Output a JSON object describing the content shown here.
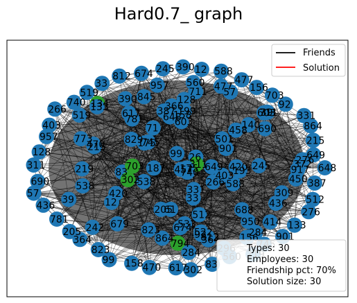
{
  "title": "Hard0.7_ graph",
  "legend": {
    "items": [
      {
        "label": "Friends",
        "color": "#000000"
      },
      {
        "label": "Solution",
        "color": "#ff0000"
      }
    ]
  },
  "info_box": {
    "lines": [
      "Types: 30",
      "Employees: 30",
      "Friendship pct: 70%",
      "Solution size: 30"
    ]
  },
  "colors": {
    "node": "#1f77b4",
    "solution_node": "#2ca02c",
    "edge": "#000000"
  },
  "node_labels": [
    "648",
    "387",
    "512",
    "276",
    "133",
    "901",
    "745",
    "219",
    "560",
    "83",
    "302",
    "617",
    "470",
    "158",
    "99",
    "823",
    "364",
    "205",
    "781",
    "436",
    "57",
    "690",
    "311",
    "128",
    "957",
    "403",
    "266",
    "740",
    "519",
    "33",
    "812",
    "674",
    "245",
    "390",
    "12",
    "588",
    "477",
    "156",
    "703",
    "92",
    "331",
    "864",
    "215",
    "649",
    "420",
    "175",
    "538",
    "284",
    "711",
    "39",
    "603",
    "193",
    "457",
    "829",
    "366",
    "71",
    "501",
    "242",
    "688",
    "917",
    "134",
    "450",
    "296",
    "773",
    "61",
    "522",
    "309",
    "845",
    "187",
    "414",
    "950",
    "26",
    "603",
    "372",
    "199",
    "794",
    "458",
    "533",
    "140",
    "679"
  ]
}
